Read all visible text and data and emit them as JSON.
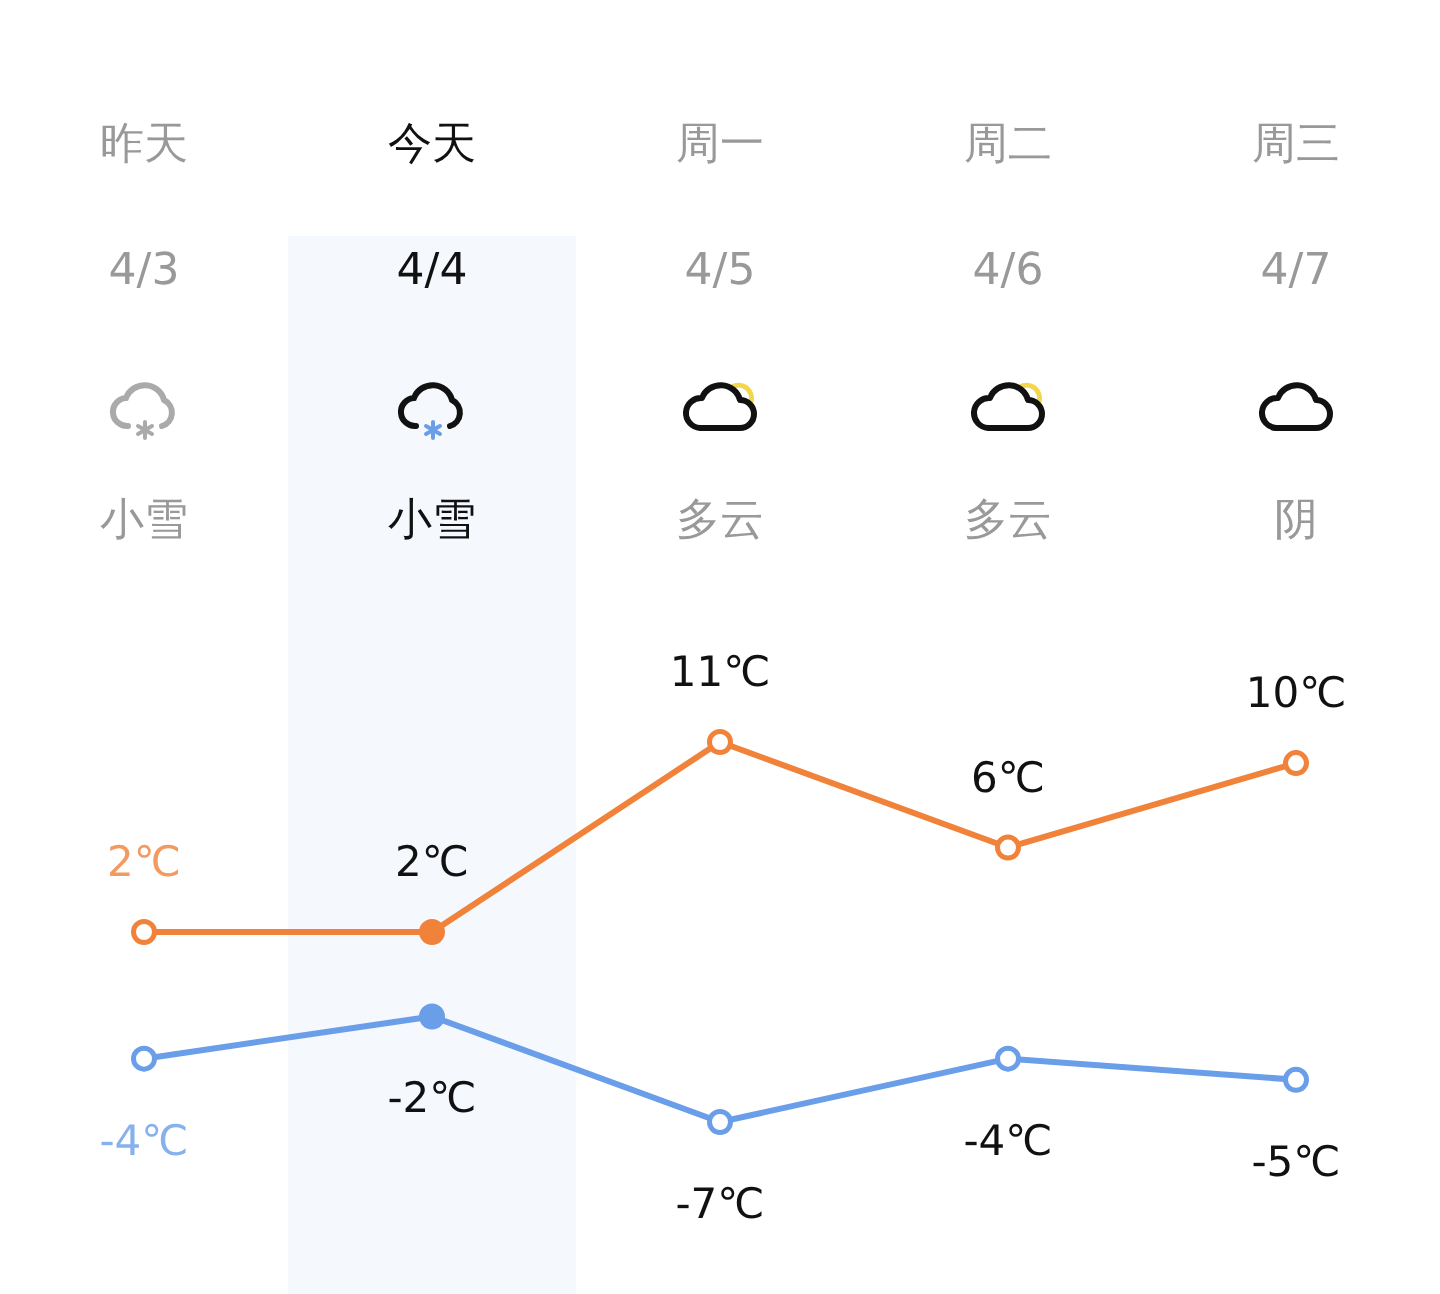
{
  "chart_data": {
    "type": "line",
    "categories": [
      "昨天\n4/3\n小雪",
      "今天\n4/4\n小雪",
      "周一\n4/5\n多云",
      "周二\n4/6\n多云",
      "周三\n4/7\n阴"
    ],
    "series": [
      {
        "color": "#f0823a",
        "values": [
          2,
          2,
          11,
          6,
          10
        ],
        "value_labels": [
          "2℃",
          "2℃",
          "11℃",
          "6℃",
          "10℃"
        ]
      },
      {
        "color": "#6a9ee8",
        "values": [
          -4,
          -2,
          -7,
          -4,
          -5
        ],
        "value_labels": [
          "-4℃",
          "-2℃",
          "-7℃",
          "-4℃",
          "-5℃"
        ]
      }
    ],
    "marker": "circle",
    "bands": [
      {
        "axis": "x",
        "from": "今天\n4/4\n小雪",
        "to": "今天\n4/4\n小雪",
        "color": "#f5f8fd"
      }
    ]
  }
}
